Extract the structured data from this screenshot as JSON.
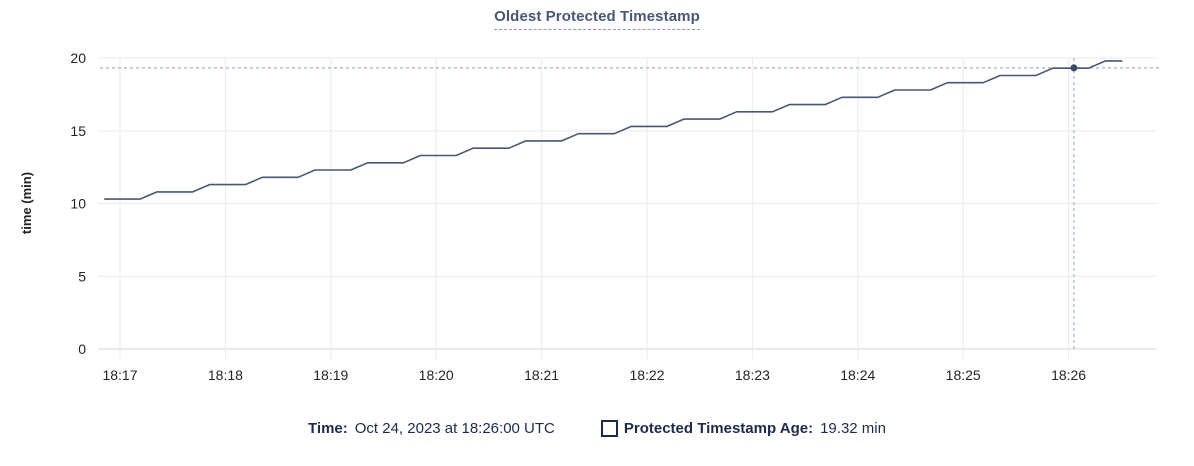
{
  "title": "Oldest Protected Timestamp",
  "legend": {
    "time_label": "Time:",
    "time_value": "Oct 24, 2023 at 18:26:00 UTC",
    "series_label": "Protected Timestamp Age:",
    "series_value": "19.32 min"
  },
  "colors": {
    "line": "#475872",
    "grid": "#ededed",
    "axis_line": "#dcdcdc",
    "crosshair": "#a0b4c4",
    "dot": "#3b4c66",
    "tick_text": "#242424"
  },
  "chart_data": {
    "type": "line",
    "title": "Oldest Protected Timestamp",
    "xlabel": "",
    "ylabel": "time (min)",
    "x_unit": "minutes after 18:00 UTC",
    "xlim": [
      16.81,
      26.82
    ],
    "ylim": [
      0,
      20
    ],
    "grid": true,
    "legend_position": "bottom",
    "x_ticks": [
      {
        "t": 17,
        "label": "18:17"
      },
      {
        "t": 18,
        "label": "18:18"
      },
      {
        "t": 19,
        "label": "18:19"
      },
      {
        "t": 20,
        "label": "18:20"
      },
      {
        "t": 21,
        "label": "18:21"
      },
      {
        "t": 22,
        "label": "18:22"
      },
      {
        "t": 23,
        "label": "18:23"
      },
      {
        "t": 24,
        "label": "18:24"
      },
      {
        "t": 25,
        "label": "18:25"
      },
      {
        "t": 26,
        "label": "18:26"
      }
    ],
    "y_ticks": [
      0,
      5,
      10,
      15,
      20
    ],
    "series": [
      {
        "name": "Protected Timestamp Age",
        "points": [
          [
            16.85,
            10.3
          ],
          [
            17.19,
            10.3
          ],
          [
            17.35,
            10.8
          ],
          [
            17.69,
            10.8
          ],
          [
            17.85,
            11.3
          ],
          [
            18.19,
            11.3
          ],
          [
            18.35,
            11.8
          ],
          [
            18.69,
            11.8
          ],
          [
            18.85,
            12.3
          ],
          [
            19.19,
            12.3
          ],
          [
            19.35,
            12.8
          ],
          [
            19.69,
            12.8
          ],
          [
            19.85,
            13.3
          ],
          [
            20.19,
            13.3
          ],
          [
            20.35,
            13.8
          ],
          [
            20.69,
            13.8
          ],
          [
            20.85,
            14.3
          ],
          [
            21.19,
            14.3
          ],
          [
            21.35,
            14.8
          ],
          [
            21.69,
            14.8
          ],
          [
            21.85,
            15.3
          ],
          [
            22.19,
            15.3
          ],
          [
            22.35,
            15.8
          ],
          [
            22.69,
            15.8
          ],
          [
            22.85,
            16.3
          ],
          [
            23.19,
            16.3
          ],
          [
            23.35,
            16.8
          ],
          [
            23.69,
            16.8
          ],
          [
            23.85,
            17.3
          ],
          [
            24.19,
            17.3
          ],
          [
            24.35,
            17.8
          ],
          [
            24.69,
            17.8
          ],
          [
            24.85,
            18.3
          ],
          [
            25.19,
            18.3
          ],
          [
            25.35,
            18.8
          ],
          [
            25.69,
            18.8
          ],
          [
            25.85,
            19.3
          ],
          [
            26.19,
            19.3
          ],
          [
            26.35,
            19.8
          ],
          [
            26.51,
            19.8
          ]
        ]
      }
    ],
    "hover": {
      "t": 26.05,
      "value": 19.32,
      "time_label": "Oct 24, 2023 at 18:26:00 UTC"
    }
  }
}
